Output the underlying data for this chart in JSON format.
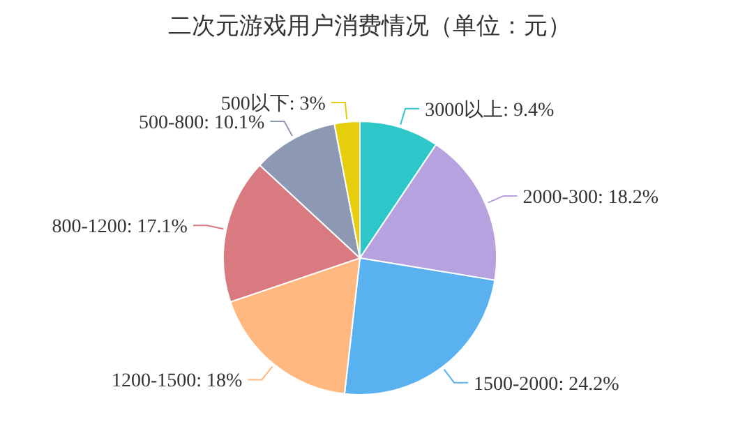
{
  "chart_data": {
    "type": "pie",
    "title": "二次元游戏用户消费情况（单位：元）",
    "categories": [
      "3000以上",
      "2000-300",
      "1500-2000",
      "1200-1500",
      "800-1200",
      "500-800",
      "500以下"
    ],
    "values": [
      9.4,
      18.2,
      24.2,
      18,
      17.1,
      10.1,
      3
    ],
    "colors": [
      "#2ec7c9",
      "#b6a2de",
      "#5ab1ef",
      "#ffb980",
      "#d87a80",
      "#8d98b3",
      "#e5cf0d"
    ],
    "value_labels": [
      ": 9.4%",
      ": 18.2%",
      ": 24.2%",
      ": 18%",
      ": 17.1%",
      ": 10.1%",
      ": 3%"
    ],
    "legend": false
  }
}
